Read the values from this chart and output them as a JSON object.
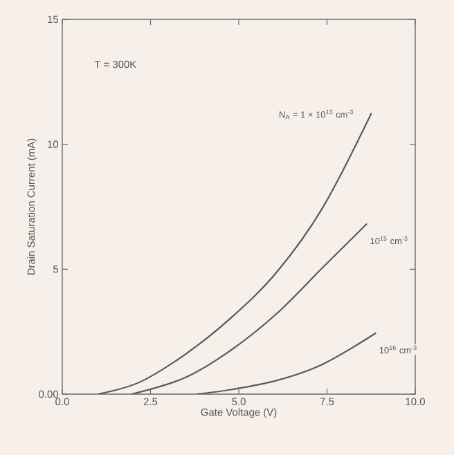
{
  "chart_data": {
    "type": "line",
    "xlabel": "Gate Voltage (V)",
    "ylabel": "Drain Saturation Current (mA)",
    "annotations": [
      "T = 300K"
    ],
    "xlim": [
      0,
      10
    ],
    "ylim": [
      0,
      15
    ],
    "xticks": [
      {
        "value": 0,
        "label": "0.0"
      },
      {
        "value": 2.5,
        "label": "2.5"
      },
      {
        "value": 5,
        "label": "5.0"
      },
      {
        "value": 7.5,
        "label": "7.5"
      },
      {
        "value": 10,
        "label": "10.0"
      }
    ],
    "yticks": [
      {
        "value": 0,
        "label": "0.00"
      },
      5,
      10,
      15
    ],
    "grid": false,
    "legend": false,
    "marker": "none",
    "line_style": "solid",
    "series": [
      {
        "name": "N$_{A}$ = 1 × 10$^{13}$ cm$^{-3}$",
        "color": "#5a5a5a",
        "x": [
          1.0,
          2.16,
          3.46,
          4.77,
          6.08,
          7.38,
          8.76
        ],
        "values": [
          0,
          0.46,
          1.57,
          3.04,
          4.89,
          7.47,
          11.25
        ]
      },
      {
        "name": "10$^{15}$ cm$^{-3}$",
        "color": "#5a5a5a",
        "x": [
          1.96,
          3.46,
          4.77,
          6.08,
          7.38,
          8.63
        ],
        "values": [
          0,
          0.65,
          1.75,
          3.23,
          5.07,
          6.82
        ]
      },
      {
        "name": "10$^{16}$ cm$^{-3}$",
        "color": "#5a5a5a",
        "x": [
          3.79,
          4.77,
          6.08,
          7.38,
          8.89
        ],
        "values": [
          0,
          0.18,
          0.55,
          1.2,
          2.45
        ]
      }
    ]
  }
}
